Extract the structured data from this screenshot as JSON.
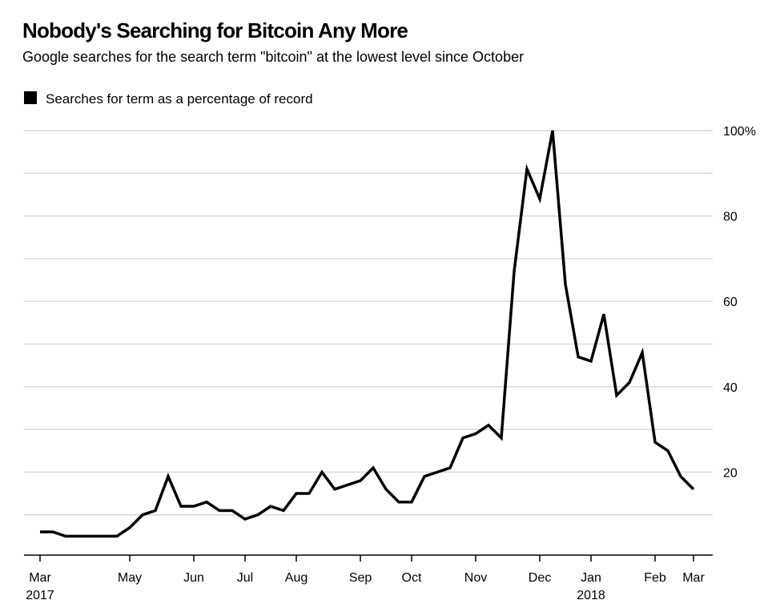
{
  "chart_data": {
    "type": "line",
    "title": "Nobody's Searching for Bitcoin Any More",
    "subtitle": "Google searches for the search term \"bitcoin\" at the lowest level since October",
    "categories": [
      "Mar 2017",
      null,
      null,
      null,
      null,
      null,
      null,
      "May",
      null,
      null,
      null,
      null,
      "Jun",
      null,
      null,
      null,
      "Jul",
      null,
      null,
      null,
      "Aug",
      null,
      null,
      null,
      null,
      "Sep",
      null,
      null,
      null,
      "Oct",
      null,
      null,
      null,
      null,
      "Nov",
      null,
      null,
      null,
      null,
      "Dec",
      null,
      null,
      null,
      "Jan 2018",
      null,
      null,
      null,
      null,
      "Feb",
      null,
      null,
      "Mar"
    ],
    "series": [
      {
        "name": "Searches for term as a percentage of record",
        "color": "#000000",
        "values": [
          6,
          6,
          5,
          5,
          5,
          5,
          5,
          7,
          10,
          11,
          19,
          12,
          12,
          13,
          11,
          11,
          9,
          10,
          12,
          11,
          15,
          15,
          20,
          16,
          17,
          18,
          21,
          16,
          13,
          13,
          19,
          20,
          21,
          28,
          29,
          31,
          28,
          67,
          91,
          84,
          100,
          64,
          47,
          46,
          57,
          38,
          41,
          48,
          27,
          25,
          19,
          16
        ]
      }
    ],
    "ylim": [
      0,
      100
    ],
    "yticks": [
      20,
      40,
      60,
      80,
      {
        "value": 100,
        "label": "100%"
      }
    ],
    "minor_yticks": [
      10,
      30,
      50,
      70,
      90
    ],
    "grid": true,
    "legend": "top-left",
    "y_axis_side": "right"
  }
}
